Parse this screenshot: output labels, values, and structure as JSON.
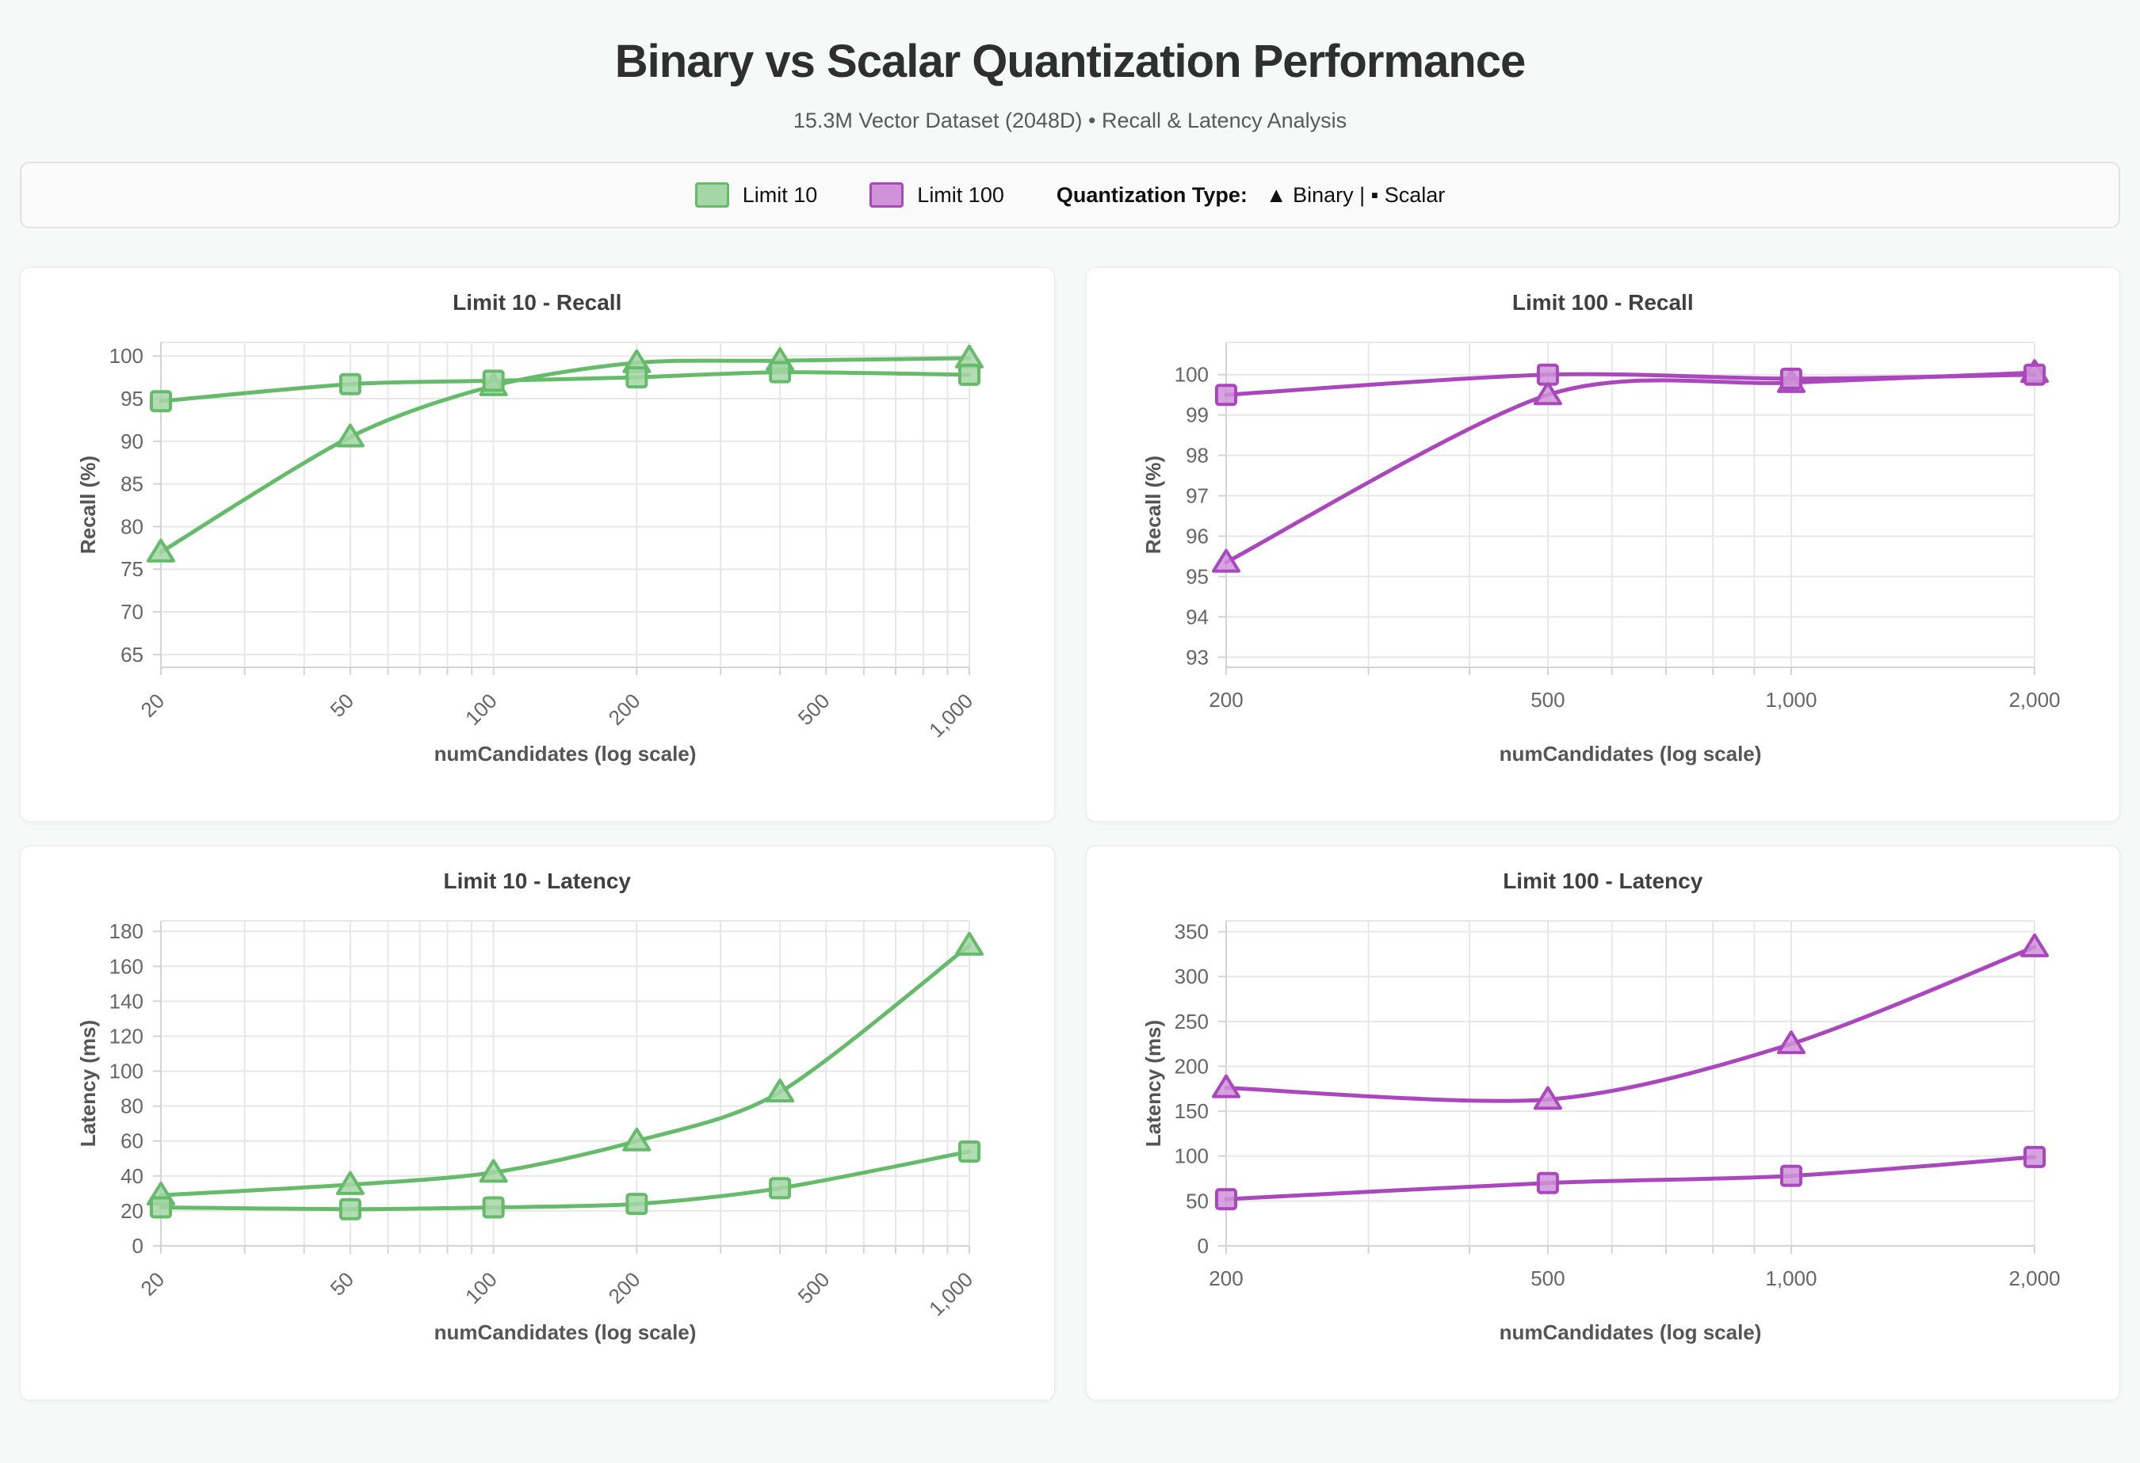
{
  "header": {
    "title": "Binary vs Scalar Quantization Performance",
    "subtitle": "15.3M Vector Dataset (2048D) • Recall & Latency Analysis"
  },
  "legend": {
    "items": [
      {
        "label": "Limit 10",
        "fill": "#a5d6a7",
        "border": "#66bb6a"
      },
      {
        "label": "Limit 100",
        "fill": "#ce93d8",
        "border": "#ab47bc"
      }
    ],
    "quantization_label": "Quantization Type:",
    "quantization_value": "▲ Binary | ▪ Scalar"
  },
  "colors": {
    "green": {
      "main": "#66bb6a",
      "light": "#a5d6a7"
    },
    "purple": {
      "main": "#ab47bc",
      "light": "#ce93d8"
    }
  },
  "chart_data": [
    {
      "type": "line",
      "key": "limit10-recall",
      "title": "Limit 10 - Recall",
      "xlabel": "numCandidates (log scale)",
      "ylabel": "Recall (%)",
      "x_scale": "log",
      "rotate_x_labels": true,
      "xmin": 20,
      "xmax": 1000,
      "x_tick_values": [
        20,
        50,
        100,
        200,
        500,
        1000
      ],
      "x_tick_labels": [
        "20",
        "50",
        "100",
        "200",
        "500",
        "1,000"
      ],
      "ymin": 63.5,
      "ymax": 101.6,
      "y_ticks": [
        65,
        70,
        75,
        80,
        85,
        90,
        95,
        100
      ],
      "x": [
        20,
        50,
        100,
        200,
        400,
        1000
      ],
      "color": "green",
      "series": [
        {
          "name": "Binary",
          "marker": "triangle",
          "values": [
            77,
            90.5,
            96.5,
            99.2,
            99.45,
            99.75
          ]
        },
        {
          "name": "Scalar",
          "marker": "square",
          "values": [
            94.7,
            96.7,
            97.1,
            97.5,
            98.1,
            97.8
          ]
        }
      ]
    },
    {
      "type": "line",
      "key": "limit100-recall",
      "title": "Limit 100 - Recall",
      "xlabel": "numCandidates (log scale)",
      "ylabel": "Recall (%)",
      "x_scale": "log",
      "rotate_x_labels": false,
      "xmin": 200,
      "xmax": 2000,
      "x_tick_values": [
        200,
        500,
        1000,
        2000
      ],
      "x_tick_labels": [
        "200",
        "500",
        "1,000",
        "2,000"
      ],
      "ymin": 92.75,
      "ymax": 100.8,
      "y_ticks": [
        93,
        94,
        95,
        96,
        97,
        98,
        99,
        100
      ],
      "x": [
        200,
        500,
        1000,
        2000
      ],
      "color": "purple",
      "series": [
        {
          "name": "Binary",
          "marker": "triangle",
          "values": [
            95.35,
            99.5,
            99.8,
            100.05
          ]
        },
        {
          "name": "Scalar",
          "marker": "square",
          "values": [
            99.5,
            100.0,
            99.9,
            100.0
          ]
        }
      ]
    },
    {
      "type": "line",
      "key": "limit10-latency",
      "title": "Limit 10 - Latency",
      "xlabel": "numCandidates (log scale)",
      "ylabel": "Latency (ms)",
      "x_scale": "log",
      "rotate_x_labels": true,
      "xmin": 20,
      "xmax": 1000,
      "x_tick_values": [
        20,
        50,
        100,
        200,
        500,
        1000
      ],
      "x_tick_labels": [
        "20",
        "50",
        "100",
        "200",
        "500",
        "1,000"
      ],
      "ymin": 0,
      "ymax": 186,
      "y_ticks": [
        0,
        20,
        40,
        60,
        80,
        100,
        120,
        140,
        160,
        180
      ],
      "x": [
        20,
        50,
        100,
        200,
        400,
        1000
      ],
      "color": "green",
      "series": [
        {
          "name": "Binary",
          "marker": "triangle",
          "values": [
            29,
            35,
            42,
            60,
            88,
            172
          ]
        },
        {
          "name": "Scalar",
          "marker": "square",
          "values": [
            22,
            21,
            22,
            24,
            33,
            54
          ]
        }
      ]
    },
    {
      "type": "line",
      "key": "limit100-latency",
      "title": "Limit 100 - Latency",
      "xlabel": "numCandidates (log scale)",
      "ylabel": "Latency (ms)",
      "x_scale": "log",
      "rotate_x_labels": false,
      "xmin": 200,
      "xmax": 2000,
      "x_tick_values": [
        200,
        500,
        1000,
        2000
      ],
      "x_tick_labels": [
        "200",
        "500",
        "1,000",
        "2,000"
      ],
      "ymin": 0,
      "ymax": 362,
      "y_ticks": [
        0,
        50,
        100,
        150,
        200,
        250,
        300,
        350
      ],
      "x": [
        200,
        500,
        1000,
        2000
      ],
      "color": "purple",
      "series": [
        {
          "name": "Binary",
          "marker": "triangle",
          "values": [
            176,
            163,
            225,
            333
          ]
        },
        {
          "name": "Scalar",
          "marker": "square",
          "values": [
            52,
            70,
            78,
            99
          ]
        }
      ]
    }
  ]
}
